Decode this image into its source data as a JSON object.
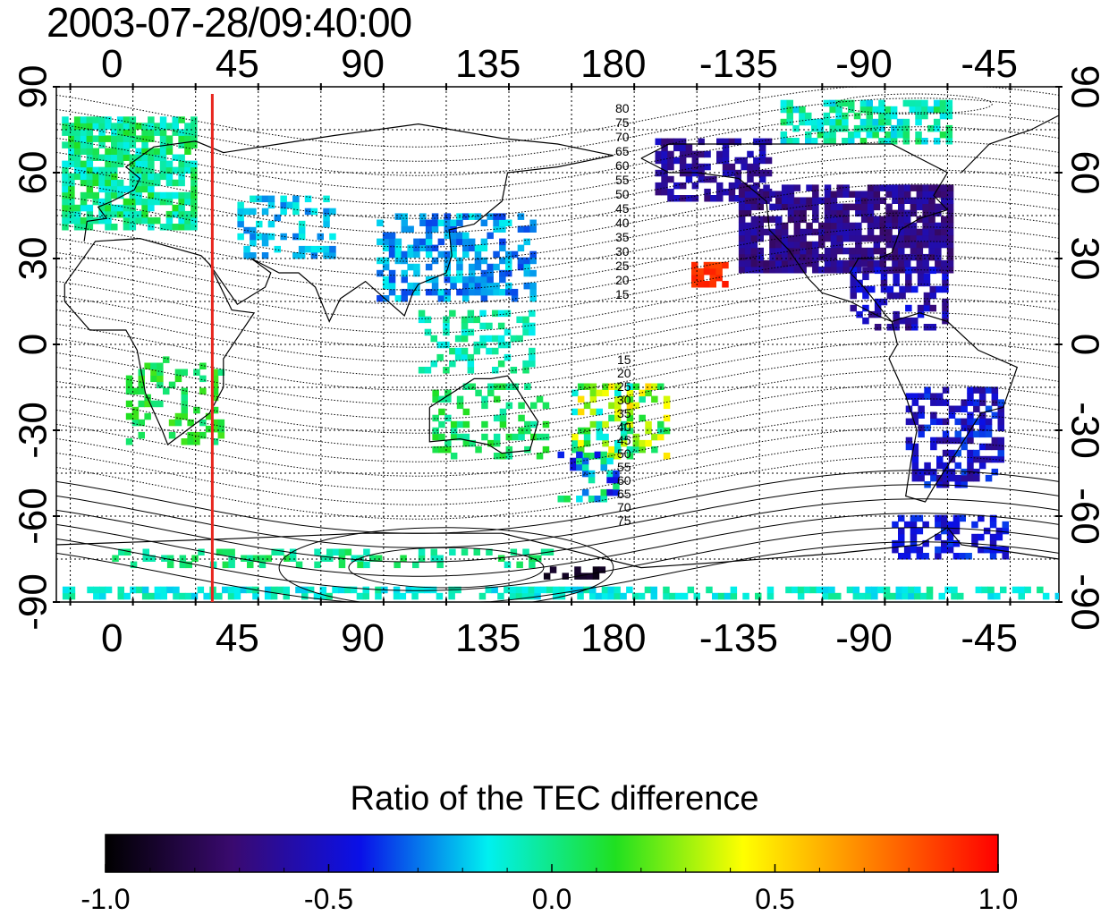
{
  "title": "2003-07-28/09:40:00",
  "map": {
    "lon_ticks": [
      "0",
      "45",
      "90",
      "135",
      "180",
      "-135",
      "-90",
      "-45"
    ],
    "lon_tick_values": [
      0,
      45,
      90,
      135,
      180,
      225,
      270,
      315
    ],
    "lat_ticks_left": [
      "-90",
      "-60",
      "-30",
      "0",
      "30",
      "60",
      "90"
    ],
    "lat_ticks_right": [
      "-90",
      "-60",
      "-30",
      "0",
      "30",
      "60",
      "90"
    ],
    "lat_tick_values": [
      -90,
      -60,
      -30,
      0,
      30,
      60,
      90
    ],
    "lon_range": [
      -20,
      340
    ],
    "lat_range": [
      -90,
      90
    ],
    "grid": true,
    "meridian_marker": {
      "lon": 36,
      "color": "#e8261e"
    },
    "contour_labels_north": [
      "80",
      "75",
      "70",
      "65",
      "60",
      "55",
      "50",
      "45",
      "40",
      "35",
      "30",
      "25",
      "20",
      "15"
    ],
    "contour_labels_south": [
      "15",
      "20",
      "25",
      "30",
      "35",
      "40",
      "45",
      "50",
      "55",
      "60",
      "65",
      "70",
      "75"
    ]
  },
  "colorbar": {
    "title": "Ratio of the TEC difference",
    "ticks": [
      "-1.0",
      "-0.5",
      "0.0",
      "0.5",
      "1.0"
    ],
    "tick_values": [
      -1.0,
      -0.5,
      0.0,
      0.5,
      1.0
    ],
    "stops": [
      "#000000",
      "#3a0a70",
      "#0a10e8",
      "#00f0f0",
      "#20e020",
      "#ffff00",
      "#ff8000",
      "#ff0000"
    ]
  }
}
